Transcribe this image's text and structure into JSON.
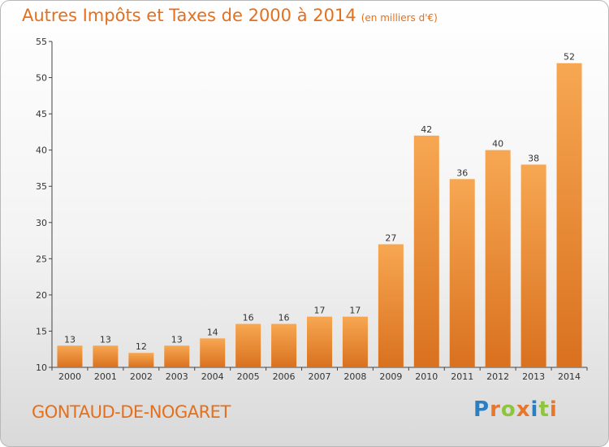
{
  "header": {
    "title": "Autres Impôts et Taxes de 2000 à 2014",
    "unit": "(en milliers d'€)"
  },
  "footer": {
    "commune": "GONTAUD-DE-NOGARET"
  },
  "logo": {
    "letters": [
      "P",
      "r",
      "o",
      "x",
      "i",
      "t",
      "i"
    ],
    "colors": [
      "#2a7fc3",
      "#e8762b",
      "#8fc43f",
      "#e8762b",
      "#2a7fc3",
      "#8fc43f",
      "#e8762b"
    ]
  },
  "colors": {
    "accent": "#e4701e",
    "bar_top": "#f7a752",
    "bar_bottom": "#d9711f"
  },
  "chart_data": {
    "type": "bar",
    "title": "Autres Impôts et Taxes de 2000 à 2014",
    "categories": [
      "2000",
      "2001",
      "2002",
      "2003",
      "2004",
      "2005",
      "2006",
      "2007",
      "2008",
      "2009",
      "2010",
      "2011",
      "2012",
      "2013",
      "2014"
    ],
    "values": [
      13,
      13,
      12,
      13,
      14,
      16,
      16,
      17,
      17,
      27,
      42,
      36,
      40,
      38,
      52
    ],
    "ylim": [
      10,
      55
    ],
    "yticks": [
      10,
      15,
      20,
      25,
      30,
      35,
      40,
      45,
      50,
      55
    ],
    "grid": false,
    "legend": "none"
  }
}
